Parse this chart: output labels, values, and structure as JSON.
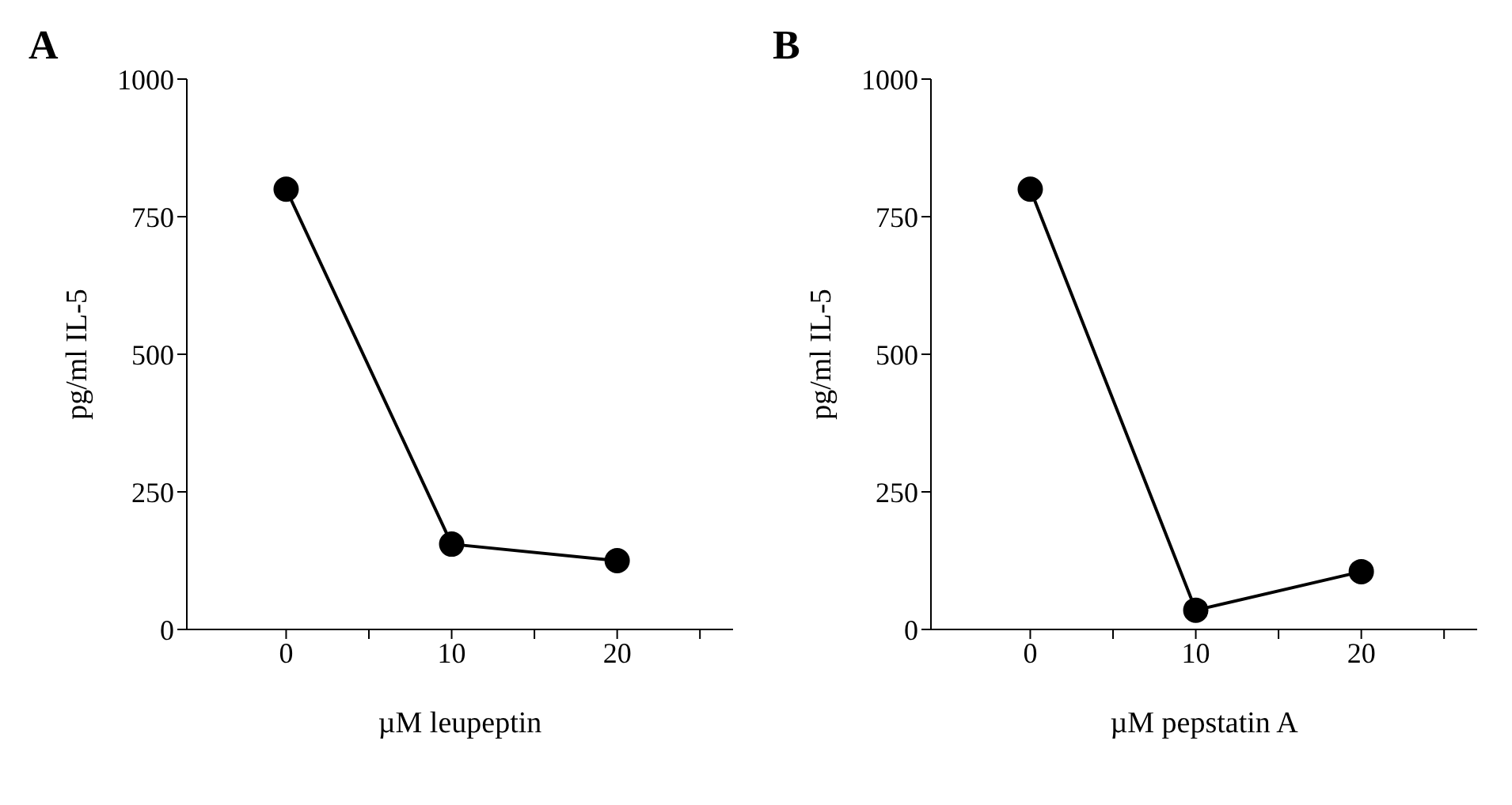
{
  "chart_data": [
    {
      "type": "line",
      "title": "A",
      "xlabel": "µM leupeptin",
      "ylabel": "pg/ml IL-5",
      "x": [
        0,
        10,
        20
      ],
      "series": [
        {
          "color": "#000000",
          "values": [
            800,
            155,
            125
          ]
        }
      ],
      "xlim": [
        -6,
        27
      ],
      "xticks": [
        0,
        {
          "value": 5,
          "label": null
        },
        10,
        {
          "value": 15,
          "label": null
        },
        20,
        {
          "value": 25,
          "label": null
        }
      ],
      "ylim": [
        0,
        1000
      ],
      "yticks": [
        0,
        250,
        500,
        750,
        1000
      ],
      "grid": false,
      "legend": false,
      "marker": "circle",
      "line_style": "solid"
    },
    {
      "type": "line",
      "title": "B",
      "xlabel": "µM pepstatin A",
      "ylabel": "pg/ml IL-5",
      "x": [
        0,
        10,
        20
      ],
      "series": [
        {
          "color": "#000000",
          "values": [
            800,
            35,
            105
          ]
        }
      ],
      "xlim": [
        -6,
        27
      ],
      "xticks": [
        0,
        {
          "value": 5,
          "label": null
        },
        10,
        {
          "value": 15,
          "label": null
        },
        20,
        {
          "value": 25,
          "label": null
        }
      ],
      "ylim": [
        0,
        1000
      ],
      "yticks": [
        0,
        250,
        500,
        750,
        1000
      ],
      "grid": false,
      "legend": false,
      "marker": "circle",
      "line_style": "solid"
    }
  ]
}
